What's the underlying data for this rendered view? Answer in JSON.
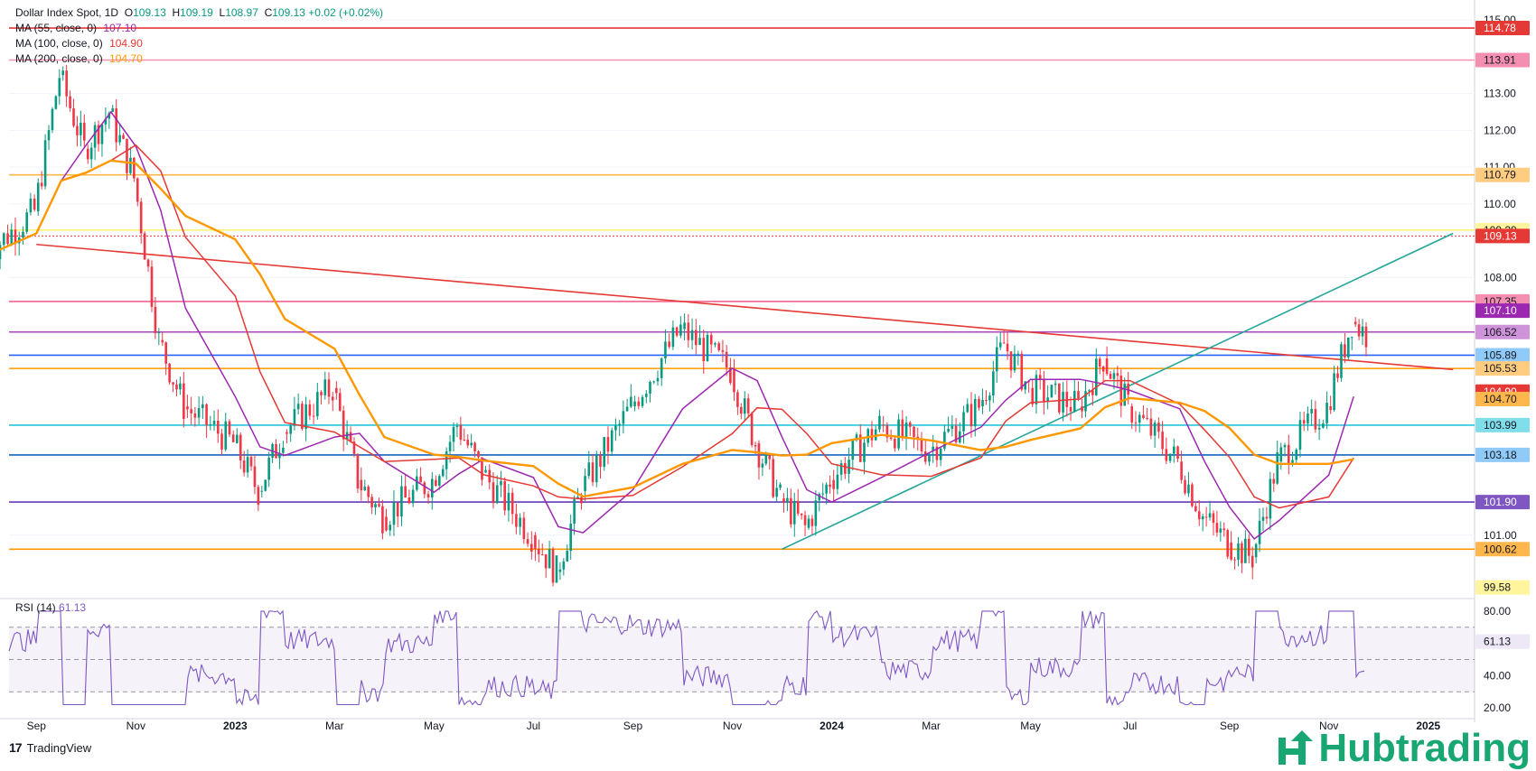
{
  "chart_data": {
    "type": "candlestick",
    "instrument": "Dollar Index Spot",
    "timeframe": "1D",
    "ohlc": {
      "open": "109.13",
      "high": "109.19",
      "low": "108.97",
      "close": "109.13",
      "change": "+0.02",
      "change_pct": "(+0.02%)"
    },
    "moving_averages": [
      {
        "label": "MA (55, close, 0)",
        "value": "107.10",
        "color": "#9c27b0"
      },
      {
        "label": "MA (100, close, 0)",
        "value": "104.90",
        "color": "#e53935"
      },
      {
        "label": "MA (200, close, 0)",
        "value": "104.70",
        "color": "#ff9800"
      }
    ],
    "y_axis_ticks": [
      "115.00",
      "113.00",
      "112.00",
      "111.00",
      "110.00",
      "108.00",
      "101.00"
    ],
    "x_axis_ticks": [
      "Sep",
      "Nov",
      "2023",
      "Mar",
      "May",
      "Jul",
      "Sep",
      "Nov",
      "2024",
      "Mar",
      "May",
      "Jul",
      "Sep",
      "Nov",
      "2025"
    ],
    "ylim": [
      99.4,
      115.1
    ],
    "levels": [
      {
        "value": 114.78,
        "label": "114.78",
        "color": "#e53935",
        "style": "solid",
        "bg": "#e53935"
      },
      {
        "value": 113.91,
        "label": "113.91",
        "color": "#f48fb1",
        "style": "solid",
        "bg": "#f48fb1"
      },
      {
        "value": 110.79,
        "label": "110.79",
        "color": "#ffb74d",
        "style": "solid",
        "bg": "#ffcc80"
      },
      {
        "value": 109.29,
        "label": "109.29",
        "color": "#fff176",
        "style": "solid",
        "bg": "#fff59d"
      },
      {
        "value": 109.13,
        "label": "109.13",
        "color": "#e53935",
        "style": "dotted",
        "bg": "#e53935"
      },
      {
        "value": 107.35,
        "label": "107.35",
        "color": "#f06292",
        "style": "solid",
        "bg": "#f48fb1"
      },
      {
        "value": 107.1,
        "label": "107.10",
        "color": "",
        "style": "none",
        "bg": "#9c27b0"
      },
      {
        "value": 106.52,
        "label": "106.52",
        "color": "#ab47bc",
        "style": "solid",
        "bg": "#ce93d8"
      },
      {
        "value": 105.89,
        "label": "105.89",
        "color": "#2962ff",
        "style": "solid",
        "bg": "#90caf9"
      },
      {
        "value": 105.53,
        "label": "105.53",
        "color": "#ff9800",
        "style": "solid",
        "bg": "#ffcc80"
      },
      {
        "value": 104.9,
        "label": "104.90",
        "color": "",
        "style": "none",
        "bg": "#e53935"
      },
      {
        "value": 104.7,
        "label": "104.70",
        "color": "",
        "style": "none",
        "bg": "#ffb74d"
      },
      {
        "value": 103.99,
        "label": "103.99",
        "color": "#26c6da",
        "style": "solid",
        "bg": "#80deea"
      },
      {
        "value": 103.18,
        "label": "103.18",
        "color": "#1565c0",
        "style": "solid",
        "bg": "#90caf9"
      },
      {
        "value": 101.9,
        "label": "101.90",
        "color": "#673ab7",
        "style": "solid",
        "bg": "#7e57c2"
      },
      {
        "value": 100.62,
        "label": "100.62",
        "color": "#ff9800",
        "style": "solid",
        "bg": "#ffb74d"
      },
      {
        "value": 99.58,
        "label": "99.58",
        "color": "",
        "style": "none",
        "bg": "#fff59d"
      }
    ],
    "trendlines": [
      {
        "name": "descending",
        "color": "#e53935",
        "points": [
          [
            "2022-09",
            108.9
          ],
          [
            "2025-01",
            105.5
          ]
        ]
      },
      {
        "name": "ascending",
        "color": "#26a69a",
        "points": [
          [
            "2023-12",
            100.62
          ],
          [
            "2025-01",
            109.2
          ]
        ]
      }
    ],
    "close_series_approx": [
      [
        "2022-08",
        108.6
      ],
      [
        "2022-09",
        109.8
      ],
      [
        "2022-09b",
        113.5
      ],
      [
        "2022-10",
        111.5
      ],
      [
        "2022-10b",
        112.5
      ],
      [
        "2022-11",
        110.7
      ],
      [
        "2022-11b",
        106.3
      ],
      [
        "2022-12",
        104.5
      ],
      [
        "2023-01",
        103.5
      ],
      [
        "2023-01b",
        102.2
      ],
      [
        "2023-02",
        103.8
      ],
      [
        "2023-03",
        105.0
      ],
      [
        "2023-03b",
        102.5
      ],
      [
        "2023-04",
        101.5
      ],
      [
        "2023-05",
        102.5
      ],
      [
        "2023-05b",
        104.0
      ],
      [
        "2023-06",
        102.7
      ],
      [
        "2023-07",
        101.0
      ],
      [
        "2023-07b",
        100.0
      ],
      [
        "2023-08",
        102.2
      ],
      [
        "2023-09",
        104.5
      ],
      [
        "2023-10",
        106.6
      ],
      [
        "2023-11",
        105.5
      ],
      [
        "2023-11b",
        103.5
      ],
      [
        "2023-12",
        102.0
      ],
      [
        "2023-12b",
        101.2
      ],
      [
        "2024-01",
        102.5
      ],
      [
        "2024-02",
        104.0
      ],
      [
        "2024-03",
        103.3
      ],
      [
        "2024-04",
        104.5
      ],
      [
        "2024-04b",
        106.2
      ],
      [
        "2024-05",
        105.0
      ],
      [
        "2024-06",
        104.5
      ],
      [
        "2024-06b",
        105.8
      ],
      [
        "2024-07",
        104.5
      ],
      [
        "2024-08",
        103.0
      ],
      [
        "2024-08b",
        101.5
      ],
      [
        "2024-09",
        100.8
      ],
      [
        "2024-09b",
        100.4
      ],
      [
        "2024-10",
        103.0
      ],
      [
        "2024-11",
        104.5
      ],
      [
        "2024-11b",
        106.8
      ],
      [
        "2024-12",
        106.2
      ],
      [
        "2024-12b",
        108.0
      ],
      [
        "2025-01",
        109.3
      ],
      [
        "2025-01b",
        109.13
      ]
    ],
    "rsi": {
      "label": "RSI (14)",
      "value": "61.13",
      "period": 14,
      "color": "#7e57c2",
      "y_ticks": [
        "80.00",
        "40.00",
        "20.00"
      ],
      "ylim": [
        15,
        85
      ],
      "bands": [
        70,
        50,
        30
      ]
    }
  },
  "footer": {
    "platform": "TradingView"
  },
  "brand": {
    "name": "Hubtrading"
  }
}
